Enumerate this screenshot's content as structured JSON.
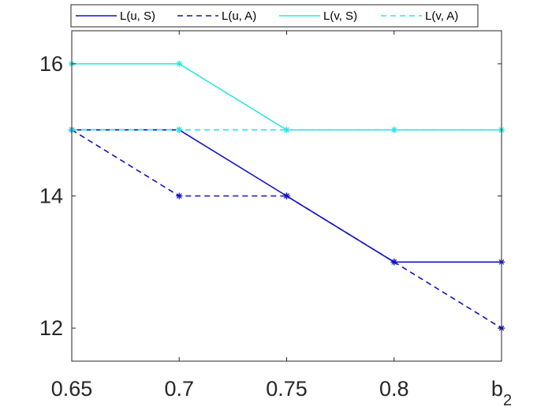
{
  "chart_data": {
    "type": "line",
    "title": "",
    "xlabel": "",
    "ylabel": "",
    "x": [
      0.65,
      0.7,
      0.75,
      0.8,
      0.85
    ],
    "xlim": [
      0.65,
      0.85
    ],
    "ylim": [
      11.5,
      16.5
    ],
    "x_tick_labels": [
      "0.65",
      "0.7",
      "0.75",
      "0.8",
      "b"
    ],
    "x_tick_subscript": "2",
    "y_ticks": [
      12,
      14,
      16
    ],
    "y_tick_labels": [
      "12",
      "14",
      "16"
    ],
    "grid": false,
    "legend_position": "top",
    "marker": "asterisk",
    "series": [
      {
        "name": "L(u, S)",
        "values": [
          15,
          15,
          14,
          13,
          13
        ],
        "color": "#1010c8",
        "dash": "solid"
      },
      {
        "name": "L(u, A)",
        "values": [
          15,
          14,
          14,
          13,
          12
        ],
        "color": "#1010c8",
        "dash": "dashed"
      },
      {
        "name": "L(v, S)",
        "values": [
          16,
          16,
          15,
          15,
          15
        ],
        "color": "#2ee6e6",
        "dash": "solid"
      },
      {
        "name": "L(v, A)",
        "values": [
          15,
          15,
          15,
          15,
          15
        ],
        "color": "#2ee6e6",
        "dash": "dashed"
      }
    ]
  }
}
